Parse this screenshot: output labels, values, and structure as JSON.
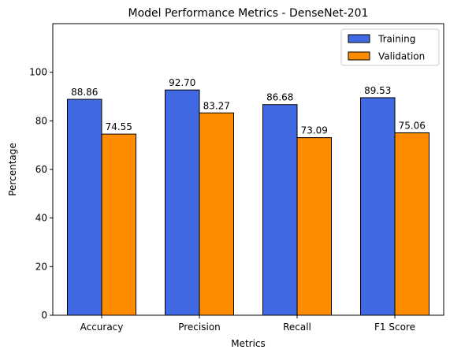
{
  "chart_data": {
    "type": "bar",
    "title": "Model Performance Metrics - DenseNet-201",
    "xlabel": "Metrics",
    "ylabel": "Percentage",
    "categories": [
      "Accuracy",
      "Precision",
      "Recall",
      "F1 Score"
    ],
    "series": [
      {
        "name": "Training",
        "color": "#4169e1",
        "values": [
          88.86,
          92.7,
          86.68,
          89.53
        ],
        "labels": [
          "88.86",
          "92.70",
          "86.68",
          "89.53"
        ]
      },
      {
        "name": "Validation",
        "color": "#ff8c00",
        "values": [
          74.55,
          83.27,
          73.09,
          75.06
        ],
        "labels": [
          "74.55",
          "83.27",
          "73.09",
          "75.06"
        ]
      }
    ],
    "ylim": [
      0,
      120
    ],
    "yticks": [
      0,
      20,
      40,
      60,
      80,
      100
    ],
    "ytick_labels": [
      "0",
      "20",
      "40",
      "60",
      "80",
      "100"
    ],
    "grid": false,
    "legend_position": "top-right"
  }
}
